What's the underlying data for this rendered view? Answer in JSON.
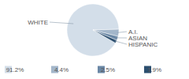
{
  "chart_data": {
    "type": "pie",
    "categories": [
      "WHITE",
      "A.I.",
      "ASIAN",
      "HISPANIC"
    ],
    "values": [
      91.2,
      4.4,
      2.5,
      1.9
    ],
    "value_labels": [
      "91.2%",
      "4.4%",
      "2.5%",
      "1.9%"
    ],
    "colors": [
      "#d3dee9",
      "#a3b6ca",
      "#6b88a6",
      "#2b4e6f"
    ],
    "data_labels": true,
    "legend": "bottom"
  }
}
